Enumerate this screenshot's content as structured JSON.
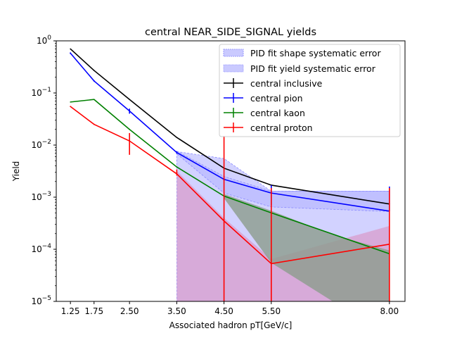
{
  "chart_data": {
    "type": "line",
    "title": "central NEAR_SIDE_SIGNAL yields",
    "xlabel": "Associated hadron pT[GeV/c]",
    "ylabel": "Yield",
    "yscale": "log",
    "xlim": [
      0.95,
      8.33
    ],
    "ylim": [
      1e-05,
      1
    ],
    "x_ticks": [
      1.25,
      1.75,
      2.5,
      3.5,
      4.5,
      5.5,
      8.0
    ],
    "x_tick_labels": [
      "1.25",
      "1.75",
      "2.50",
      "3.50",
      "4.50",
      "5.50",
      "8.00"
    ],
    "y_ticks": [
      1e-05,
      0.0001,
      0.001,
      0.01,
      0.1,
      1
    ],
    "y_tick_labels": [
      "10^-5",
      "10^-4",
      "10^-3",
      "10^-2",
      "10^-1",
      "10^0"
    ],
    "legend_position": "top-right",
    "series": [
      {
        "name": "central inclusive",
        "color": "#000000",
        "x": [
          1.25,
          1.75,
          2.5,
          3.5,
          4.5,
          5.5,
          8.0
        ],
        "y": [
          0.7,
          0.27,
          0.075,
          0.014,
          0.0036,
          0.0017,
          0.00074
        ]
      },
      {
        "name": "central pion",
        "color": "#0000ff",
        "x": [
          1.25,
          1.75,
          2.5,
          3.5,
          4.5,
          5.5,
          8.0
        ],
        "y": [
          0.58,
          0.17,
          0.045,
          0.0072,
          0.0022,
          0.0012,
          0.00054
        ],
        "yerr_low": [
          0.56,
          0.165,
          0.04,
          0.0068,
          0.0021,
          0.0007,
          0.00054
        ],
        "yerr_high": [
          0.6,
          0.175,
          0.05,
          0.0076,
          0.0023,
          0.0017,
          0.0016
        ]
      },
      {
        "name": "central kaon",
        "color": "#008000",
        "x": [
          1.25,
          1.75,
          2.5,
          3.5,
          4.5,
          5.5,
          8.0
        ],
        "y": [
          0.067,
          0.075,
          0.02,
          0.0038,
          0.00105,
          0.0005,
          8.2e-05
        ]
      },
      {
        "name": "central proton",
        "color": "#ff0000",
        "x": [
          1.25,
          1.75,
          2.5,
          3.5,
          4.5,
          5.5,
          8.0
        ],
        "y": [
          0.055,
          0.025,
          0.012,
          0.0028,
          0.00035,
          5.3e-05,
          0.000125
        ],
        "yerr_low": [
          0.054,
          0.0245,
          0.0065,
          0.0026,
          1e-05,
          1e-05,
          1e-05
        ],
        "yerr_high": [
          0.056,
          0.0255,
          0.017,
          0.0034,
          0.015,
          0.0015,
          0.0015
        ]
      }
    ],
    "systematic_bands": [
      {
        "name": "PID fit shape systematic error",
        "color": "#b4b4ff",
        "x": [
          3.5,
          4.5,
          5.5,
          8.0
        ],
        "low": [
          1e-05,
          1e-05,
          1e-05,
          1e-05
        ],
        "high": [
          0.0075,
          0.0055,
          0.0013,
          0.0013
        ]
      },
      {
        "name": "PID fit yield systematic error",
        "color": "#b4b4ff",
        "x": [
          3.5,
          4.5,
          5.5,
          8.0
        ],
        "low": [
          0.0068,
          0.0012,
          0.00065,
          0.00053
        ],
        "high": [
          0.0076,
          0.0025,
          0.0013,
          0.0013
        ]
      }
    ],
    "overlap_bands": [
      {
        "series": "central proton",
        "color": "#d8a0d0",
        "x": [
          3.5,
          4.5,
          5.5,
          8.0
        ],
        "low": [
          1e-05,
          1e-05,
          1e-05,
          1e-05
        ],
        "high": [
          0.0032,
          0.0004,
          6.5e-05,
          0.00028
        ]
      },
      {
        "series": "central kaon",
        "color": "#8c9c8c",
        "x": [
          4.5,
          5.5,
          6.8,
          8.0
        ],
        "low": [
          0.00095,
          5.5e-05,
          1e-05,
          1e-05
        ],
        "high": [
          0.00115,
          0.00055,
          0.00019,
          9.5e-05
        ]
      }
    ]
  },
  "legend": {
    "shape_label": "PID fit shape systematic error",
    "yield_label": "PID fit yield systematic error",
    "inclusive_label": "central inclusive",
    "pion_label": "central pion",
    "kaon_label": "central kaon",
    "proton_label": "central proton"
  }
}
